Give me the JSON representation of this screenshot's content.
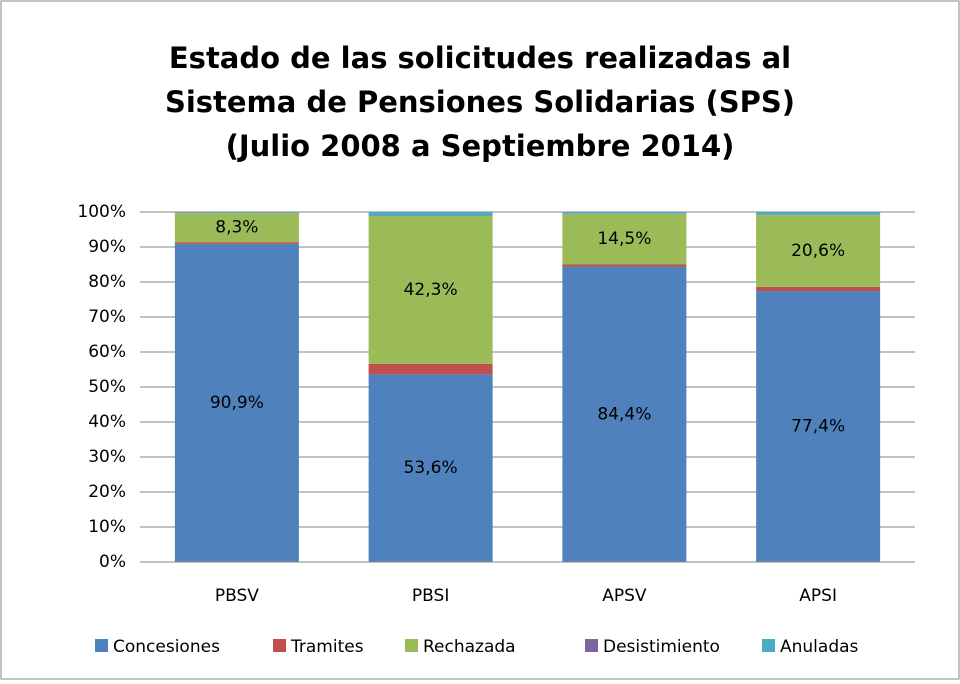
{
  "chart_data": {
    "type": "stacked_bar",
    "title": [
      "Estado de las solicitudes realizadas al",
      "Sistema de Pensiones Solidarias (SPS)",
      "(Julio 2008 a Septiembre 2014)"
    ],
    "categories": [
      "PBSV",
      "PBSI",
      "APSV",
      "APSI"
    ],
    "series": [
      {
        "name": "Concesiones",
        "color": "#4f81bd",
        "values": [
          90.9,
          53.6,
          84.4,
          77.4
        ],
        "value_labels": [
          "90,9%",
          "53,6%",
          "84,4%",
          "77,4%"
        ]
      },
      {
        "name": "Tramites",
        "color": "#c0504d",
        "values": [
          0.5,
          3.0,
          0.6,
          1.2
        ]
      },
      {
        "name": "Rechazada",
        "color": "#9bbb59",
        "values": [
          8.3,
          42.3,
          14.5,
          20.6
        ],
        "value_labels": [
          "8,3%",
          "42,3%",
          "14,5%",
          "20,6%"
        ]
      },
      {
        "name": "Desistimiento",
        "color": "#8064a2",
        "values": [
          0.1,
          0.1,
          0.1,
          0.1
        ]
      },
      {
        "name": "Anuladas",
        "color": "#4bacc6",
        "values": [
          0.2,
          1.0,
          0.4,
          0.7
        ]
      }
    ],
    "ylim": [
      0,
      100
    ],
    "yticks": [
      {
        "value": 0,
        "label": "0%"
      },
      {
        "value": 10,
        "label": "10%"
      },
      {
        "value": 20,
        "label": "20%"
      },
      {
        "value": 30,
        "label": "30%"
      },
      {
        "value": 40,
        "label": "40%"
      },
      {
        "value": 50,
        "label": "50%"
      },
      {
        "value": 60,
        "label": "60%"
      },
      {
        "value": 70,
        "label": "70%"
      },
      {
        "value": 80,
        "label": "80%"
      },
      {
        "value": 90,
        "label": "90%"
      },
      {
        "value": 100,
        "label": "100%"
      }
    ],
    "grid": true,
    "legend": "bottom"
  }
}
